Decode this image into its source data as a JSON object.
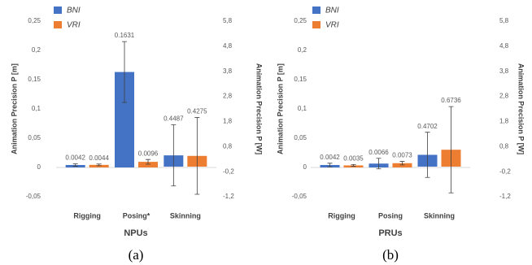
{
  "chart_data": [
    {
      "type": "bar",
      "caption": "(a)",
      "xlabel": "NPUs",
      "ylabel": "Animation Precision P [m]",
      "y2label": "Animation Precision P [W]",
      "categories": [
        "Rigging",
        "Posing*",
        "Skinning"
      ],
      "series": [
        {
          "name": "BNI",
          "color": "#4472c4",
          "axis": [
            "y",
            "y",
            "y2"
          ],
          "values": [
            0.0042,
            0.1631,
            0.4487
          ],
          "errors": [
            0.002,
            0.052,
            1.22
          ]
        },
        {
          "name": "VRI",
          "color": "#ed7d31",
          "axis": [
            "y",
            "y",
            "y2"
          ],
          "values": [
            0.0044,
            0.0096,
            0.4275
          ],
          "errors": [
            0.0015,
            0.004,
            1.53
          ]
        }
      ],
      "ylim": [
        -0.05,
        0.25
      ],
      "yticks": [
        {
          "value": -0.05,
          "label": "-0,05"
        },
        0,
        {
          "value": 0.05,
          "label": "0,05"
        },
        {
          "value": 0.1,
          "label": "0,1"
        },
        {
          "value": 0.15,
          "label": "0,15"
        },
        {
          "value": 0.2,
          "label": "0,2"
        },
        {
          "value": 0.25,
          "label": "0,25"
        }
      ],
      "y2lim": [
        -1.2,
        5.8
      ],
      "y2ticks": [
        {
          "value": -1.2,
          "label": "-1,2"
        },
        {
          "value": -0.2,
          "label": "-0,2"
        },
        {
          "value": 0.8,
          "label": "0,8"
        },
        {
          "value": 1.8,
          "label": "1,8"
        },
        {
          "value": 2.8,
          "label": "2,8"
        },
        {
          "value": 3.8,
          "label": "3,8"
        },
        {
          "value": 4.8,
          "label": "4,8"
        },
        {
          "value": 5.8,
          "label": "5,8"
        }
      ]
    },
    {
      "type": "bar",
      "caption": "(b)",
      "xlabel": "PRUs",
      "ylabel": "Animation Precision P [m]",
      "y2label": "Animation Precision P [W]",
      "categories": [
        "Rigging",
        "Posing",
        "Skinning"
      ],
      "series": [
        {
          "name": "BNI",
          "color": "#4472c4",
          "axis": [
            "y",
            "y",
            "y2"
          ],
          "values": [
            0.0042,
            0.0066,
            0.4702
          ],
          "errors": [
            0.003,
            0.009,
            0.9
          ]
        },
        {
          "name": "VRI",
          "color": "#ed7d31",
          "axis": [
            "y",
            "y",
            "y2"
          ],
          "values": [
            0.0035,
            0.0073,
            0.6736
          ],
          "errors": [
            0.0015,
            0.003,
            1.72
          ]
        }
      ],
      "ylim": [
        -0.05,
        0.25
      ],
      "yticks": [
        {
          "value": -0.05,
          "label": "-0,05"
        },
        0,
        {
          "value": 0.05,
          "label": "0,05"
        },
        {
          "value": 0.1,
          "label": "0,1"
        },
        {
          "value": 0.15,
          "label": "0,15"
        },
        {
          "value": 0.2,
          "label": "0,2"
        },
        {
          "value": 0.25,
          "label": "0,25"
        }
      ],
      "y2lim": [
        -1.2,
        5.8
      ],
      "y2ticks": [
        {
          "value": -1.2,
          "label": "-1,2"
        },
        {
          "value": -0.2,
          "label": "-0,2"
        },
        {
          "value": 0.8,
          "label": "0,8"
        },
        {
          "value": 1.8,
          "label": "1,8"
        },
        {
          "value": 2.8,
          "label": "2,8"
        },
        {
          "value": 3.8,
          "label": "3,8"
        },
        {
          "value": 4.8,
          "label": "4,8"
        },
        {
          "value": 5.8,
          "label": "5,8"
        }
      ]
    }
  ]
}
